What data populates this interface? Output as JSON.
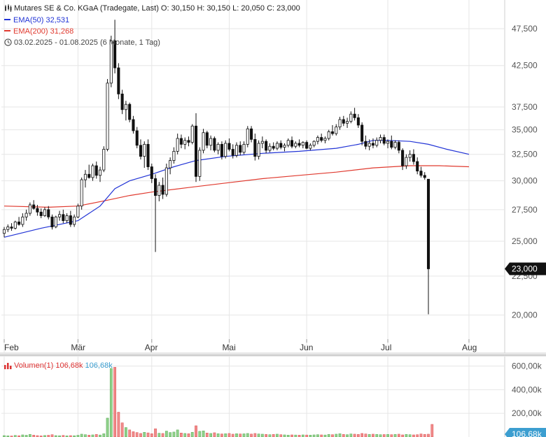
{
  "instrument": {
    "name": "Mutares SE & Co. KGaA (Tradegate, Last)",
    "open_label": "O:",
    "open": "30,150",
    "high_label": "H:",
    "high": "30,150",
    "low_label": "L:",
    "low": "20,050",
    "close_label": "C:",
    "close": "23,000"
  },
  "legend": {
    "ema50_label": "EMA(50)",
    "ema50_value": "32,531",
    "ema200_label": "EMA(200)",
    "ema200_value": "31,268",
    "range_text": "03.02.2025 - 01.08.2025",
    "range_detail": "(6 Monate, 1 Tag)",
    "volume_label": "Volumen(1)",
    "volume_value": "106,68k",
    "volume_value2": "106,68k"
  },
  "colors": {
    "up": "#ffffff",
    "down": "#111111",
    "ema50": "#2234d6",
    "ema200": "#e03a2f",
    "vol_up": "#8fd18a",
    "vol_down": "#f08a8a",
    "grid": "#e6e6e6",
    "price_tag": "#111111",
    "vol_tag": "#3c9ed0"
  },
  "chart_data": {
    "type": "candlestick",
    "y_axis": {
      "scale": "log",
      "ticks": [
        "47,500",
        "42,500",
        "37,500",
        "35,000",
        "32,500",
        "30,000",
        "27,500",
        "25,000",
        "22,500",
        "20,000"
      ],
      "tick_values": [
        47.5,
        42.5,
        37.5,
        35,
        32.5,
        30,
        27.5,
        25,
        22.5,
        20
      ],
      "ylim": [
        18.6,
        51.8
      ]
    },
    "x_axis": {
      "labels": [
        "Feb",
        "Mär",
        "Apr",
        "Mai",
        "Jun",
        "Jul",
        "Aug"
      ],
      "label_day_index": [
        0,
        20,
        40,
        61,
        82,
        104,
        126
      ]
    },
    "last_price_tag": "23,000",
    "candles": [
      [
        25.6,
        26.1,
        25.3,
        25.9
      ],
      [
        25.9,
        26.3,
        25.7,
        26.1
      ],
      [
        26.1,
        26.4,
        25.8,
        26.0
      ],
      [
        26.0,
        26.6,
        25.9,
        26.5
      ],
      [
        26.5,
        26.9,
        26.2,
        26.3
      ],
      [
        26.3,
        27.2,
        26.1,
        26.9
      ],
      [
        26.9,
        27.5,
        26.6,
        27.2
      ],
      [
        27.2,
        28.1,
        27.0,
        27.9
      ],
      [
        27.9,
        28.3,
        27.5,
        27.6
      ],
      [
        27.6,
        27.9,
        27.0,
        27.3
      ],
      [
        27.3,
        27.6,
        26.8,
        27.0
      ],
      [
        27.0,
        27.7,
        26.9,
        27.5
      ],
      [
        27.5,
        27.8,
        26.7,
        26.9
      ],
      [
        26.9,
        27.1,
        25.9,
        26.1
      ],
      [
        26.1,
        27.0,
        26.0,
        26.9
      ],
      [
        26.9,
        27.4,
        26.6,
        27.1
      ],
      [
        27.1,
        27.5,
        26.4,
        26.6
      ],
      [
        26.6,
        27.2,
        26.4,
        27.0
      ],
      [
        27.0,
        27.4,
        26.1,
        26.3
      ],
      [
        26.3,
        27.1,
        26.1,
        26.9
      ],
      [
        26.9,
        28.0,
        26.8,
        27.8
      ],
      [
        27.8,
        30.3,
        27.5,
        30.1
      ],
      [
        30.1,
        31.0,
        29.4,
        30.6
      ],
      [
        30.6,
        31.5,
        30.2,
        30.3
      ],
      [
        30.3,
        31.6,
        30.0,
        31.4
      ],
      [
        31.4,
        31.8,
        30.2,
        30.5
      ],
      [
        30.5,
        31.3,
        29.9,
        31.0
      ],
      [
        31.0,
        33.3,
        30.8,
        33.0
      ],
      [
        33.0,
        40.8,
        32.8,
        40.3
      ],
      [
        40.3,
        46.5,
        39.8,
        45.8
      ],
      [
        45.8,
        48.8,
        41.5,
        42.2
      ],
      [
        42.2,
        42.8,
        38.4,
        39.0
      ],
      [
        39.0,
        39.5,
        36.7,
        37.2
      ],
      [
        37.2,
        38.2,
        36.0,
        37.8
      ],
      [
        37.8,
        38.0,
        35.8,
        36.1
      ],
      [
        36.1,
        36.5,
        34.6,
        34.9
      ],
      [
        34.9,
        35.3,
        33.1,
        33.4
      ],
      [
        33.4,
        34.0,
        32.0,
        32.3
      ],
      [
        32.3,
        33.8,
        31.2,
        33.5
      ],
      [
        33.5,
        34.0,
        31.0,
        31.3
      ],
      [
        31.3,
        31.6,
        29.8,
        30.2
      ],
      [
        30.2,
        30.6,
        24.2,
        28.7
      ],
      [
        28.7,
        29.9,
        28.2,
        29.6
      ],
      [
        29.6,
        30.3,
        28.4,
        28.8
      ],
      [
        28.8,
        31.6,
        28.6,
        31.2
      ],
      [
        31.2,
        32.2,
        30.6,
        31.9
      ],
      [
        31.9,
        33.2,
        31.6,
        32.8
      ],
      [
        32.8,
        34.6,
        32.5,
        34.1
      ],
      [
        34.1,
        34.5,
        33.1,
        33.5
      ],
      [
        33.5,
        34.2,
        33.0,
        33.9
      ],
      [
        33.9,
        34.3,
        33.3,
        33.7
      ],
      [
        33.7,
        35.6,
        33.5,
        35.4
      ],
      [
        35.4,
        36.8,
        29.9,
        30.4
      ],
      [
        30.4,
        33.2,
        30.0,
        32.9
      ],
      [
        32.9,
        35.1,
        32.6,
        34.7
      ],
      [
        34.7,
        34.9,
        33.1,
        33.4
      ],
      [
        33.4,
        34.4,
        32.9,
        34.1
      ],
      [
        34.1,
        34.3,
        32.7,
        32.9
      ],
      [
        32.9,
        33.7,
        32.5,
        33.5
      ],
      [
        33.5,
        33.8,
        32.0,
        32.3
      ],
      [
        32.3,
        33.9,
        32.1,
        33.6
      ],
      [
        33.6,
        34.1,
        32.8,
        33.0
      ],
      [
        33.0,
        33.5,
        32.1,
        32.4
      ],
      [
        32.4,
        33.7,
        32.2,
        33.4
      ],
      [
        33.4,
        33.8,
        32.4,
        32.7
      ],
      [
        32.7,
        33.8,
        32.5,
        33.5
      ],
      [
        33.5,
        35.4,
        33.2,
        35.1
      ],
      [
        35.1,
        35.4,
        33.7,
        34.0
      ],
      [
        34.0,
        34.6,
        31.9,
        32.3
      ],
      [
        32.3,
        33.9,
        32.0,
        33.6
      ],
      [
        33.6,
        34.3,
        33.1,
        33.8
      ],
      [
        33.8,
        34.0,
        32.6,
        32.9
      ],
      [
        32.9,
        33.6,
        32.7,
        33.3
      ],
      [
        33.3,
        33.7,
        32.9,
        33.1
      ],
      [
        33.1,
        33.8,
        32.9,
        33.6
      ],
      [
        33.6,
        33.9,
        33.0,
        33.2
      ],
      [
        33.2,
        33.6,
        32.8,
        33.4
      ],
      [
        33.4,
        34.1,
        33.2,
        33.9
      ],
      [
        33.9,
        34.3,
        33.1,
        33.3
      ],
      [
        33.3,
        33.8,
        33.1,
        33.6
      ],
      [
        33.6,
        34.0,
        33.2,
        33.4
      ],
      [
        33.4,
        33.8,
        33.1,
        33.7
      ],
      [
        33.7,
        33.9,
        33.0,
        33.1
      ],
      [
        33.1,
        33.6,
        32.9,
        33.4
      ],
      [
        33.4,
        33.9,
        33.2,
        33.8
      ],
      [
        33.8,
        34.4,
        33.5,
        34.2
      ],
      [
        34.2,
        34.6,
        33.7,
        33.9
      ],
      [
        33.9,
        34.3,
        33.6,
        34.1
      ],
      [
        34.1,
        35.0,
        33.9,
        34.8
      ],
      [
        34.8,
        35.5,
        34.4,
        34.6
      ],
      [
        34.6,
        35.6,
        34.4,
        35.3
      ],
      [
        35.3,
        36.4,
        35.0,
        36.1
      ],
      [
        36.1,
        36.5,
        35.4,
        35.7
      ],
      [
        35.7,
        36.3,
        35.2,
        35.9
      ],
      [
        35.9,
        37.0,
        35.7,
        36.7
      ],
      [
        36.7,
        37.4,
        36.0,
        36.3
      ],
      [
        36.3,
        36.7,
        35.2,
        35.5
      ],
      [
        35.5,
        35.8,
        33.4,
        33.8
      ],
      [
        33.8,
        34.4,
        33.0,
        33.3
      ],
      [
        33.3,
        34.0,
        32.9,
        33.6
      ],
      [
        33.6,
        34.1,
        33.1,
        33.4
      ],
      [
        33.4,
        34.2,
        33.2,
        33.9
      ],
      [
        33.9,
        34.5,
        33.6,
        34.2
      ],
      [
        34.2,
        34.5,
        33.4,
        33.6
      ],
      [
        33.6,
        34.0,
        33.1,
        33.8
      ],
      [
        33.8,
        34.4,
        33.0,
        33.2
      ],
      [
        33.2,
        33.9,
        33.0,
        33.7
      ],
      [
        33.7,
        33.9,
        32.6,
        32.9
      ],
      [
        32.9,
        33.1,
        31.0,
        31.4
      ],
      [
        31.4,
        32.5,
        31.1,
        32.2
      ],
      [
        32.2,
        32.9,
        31.8,
        32.5
      ],
      [
        32.5,
        33.0,
        31.5,
        31.8
      ],
      [
        31.8,
        32.2,
        30.6,
        30.9
      ],
      [
        30.9,
        31.3,
        30.3,
        30.5
      ],
      [
        30.5,
        30.8,
        30.1,
        30.3
      ],
      [
        30.15,
        30.15,
        20.05,
        23.0
      ]
    ],
    "ema50": [
      [
        0,
        25.3
      ],
      [
        10,
        26.0
      ],
      [
        20,
        26.6
      ],
      [
        26,
        27.8
      ],
      [
        30,
        29.3
      ],
      [
        34,
        30.0
      ],
      [
        40,
        30.6
      ],
      [
        46,
        31.3
      ],
      [
        52,
        31.9
      ],
      [
        60,
        32.3
      ],
      [
        70,
        32.6
      ],
      [
        80,
        32.8
      ],
      [
        90,
        33.1
      ],
      [
        96,
        33.5
      ],
      [
        100,
        33.9
      ],
      [
        104,
        33.9
      ],
      [
        110,
        33.8
      ],
      [
        115,
        33.5
      ],
      [
        120,
        33.0
      ],
      [
        126,
        32.5
      ]
    ],
    "ema200": [
      [
        0,
        27.8
      ],
      [
        12,
        27.7
      ],
      [
        20,
        27.8
      ],
      [
        28,
        28.3
      ],
      [
        34,
        28.7
      ],
      [
        40,
        29.0
      ],
      [
        50,
        29.4
      ],
      [
        60,
        29.8
      ],
      [
        70,
        30.2
      ],
      [
        80,
        30.5
      ],
      [
        90,
        30.8
      ],
      [
        100,
        31.2
      ],
      [
        110,
        31.4
      ],
      [
        118,
        31.4
      ],
      [
        126,
        31.3
      ]
    ],
    "volume": {
      "ticks": [
        "600,00k",
        "400,00k",
        "200,00k"
      ],
      "tick_values": [
        600,
        400,
        200
      ],
      "ylim": [
        0,
        680
      ],
      "last_tag": "106,68k",
      "values": [
        12,
        10,
        9,
        14,
        11,
        18,
        15,
        22,
        16,
        12,
        10,
        13,
        15,
        20,
        12,
        11,
        14,
        10,
        12,
        11,
        15,
        24,
        20,
        16,
        18,
        22,
        17,
        28,
        160,
        580,
        590,
        210,
        120,
        80,
        60,
        45,
        38,
        30,
        40,
        35,
        28,
        70,
        32,
        30,
        50,
        38,
        42,
        60,
        34,
        30,
        28,
        40,
        95,
        48,
        52,
        34,
        30,
        36,
        28,
        26,
        28,
        30,
        24,
        28,
        26,
        27,
        30,
        25,
        30,
        26,
        24,
        22,
        20,
        22,
        24,
        20,
        18,
        16,
        18,
        17,
        16,
        18,
        17,
        16,
        18,
        20,
        18,
        17,
        22,
        20,
        24,
        28,
        22,
        20,
        26,
        24,
        22,
        30,
        26,
        22,
        24,
        22,
        20,
        21,
        22,
        20,
        22,
        24,
        18,
        22,
        20,
        18,
        20,
        26,
        22,
        24,
        106.68
      ]
    }
  }
}
